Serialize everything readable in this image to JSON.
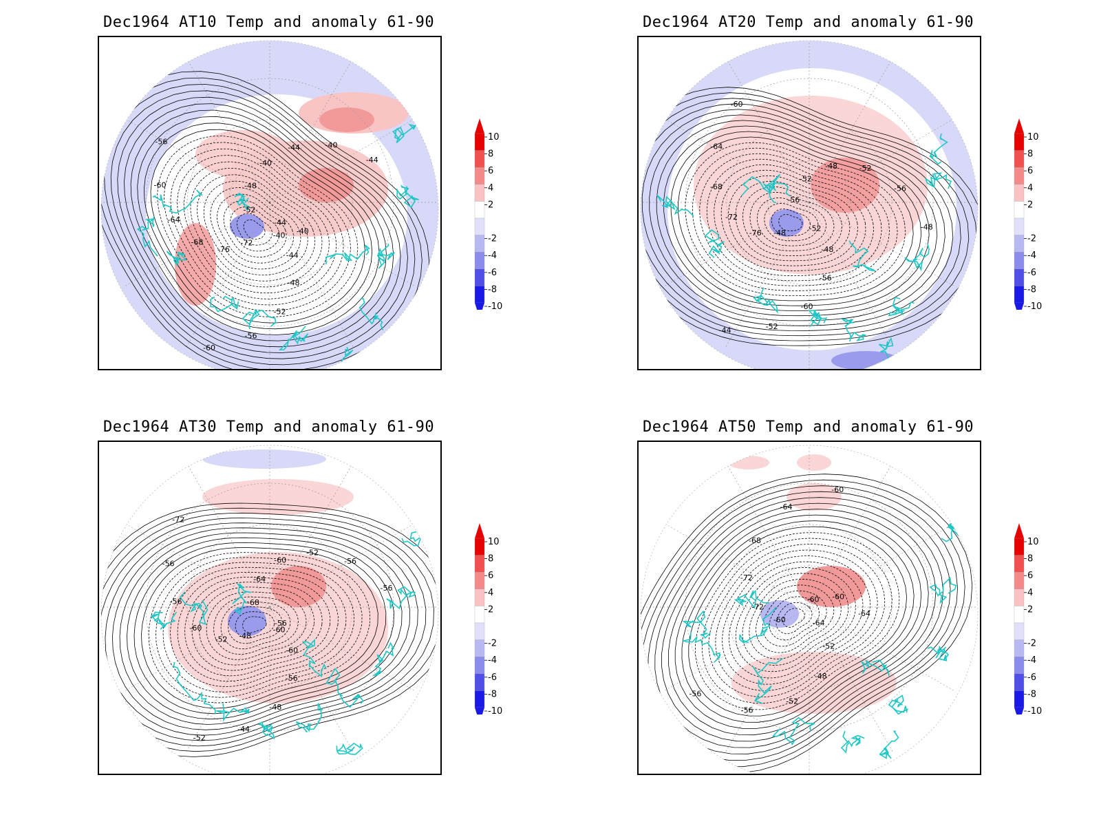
{
  "panels": [
    {
      "title": "Dec1964 AT10 Temp and anomaly 61-90",
      "contour_labels": [
        "-40",
        "-44",
        "-48",
        "-52",
        "-56",
        "-60",
        "-72",
        "-76",
        "-68",
        "-64",
        "-60",
        "-56",
        "-52",
        "-48",
        "-40",
        "-44",
        "-40",
        "-44",
        "-44",
        "-40"
      ]
    },
    {
      "title": "Dec1964 AT20 Temp and anomaly 61-90",
      "contour_labels": [
        "-52",
        "-48",
        "-56",
        "-60",
        "-52",
        "-44",
        "-48",
        "-76",
        "-72",
        "-68",
        "-64",
        "-60",
        "-56",
        "-52",
        "-48",
        "-52",
        "-56",
        "-48"
      ]
    },
    {
      "title": "Dec1964 AT30 Temp and anomaly 61-90",
      "contour_labels": [
        "-60",
        "-60",
        "-56",
        "-48",
        "-44",
        "-52",
        "-48",
        "-52",
        "-60",
        "-56",
        "-56",
        "-72",
        "-68",
        "-64",
        "-60",
        "-52",
        "-56",
        "-56",
        "-56"
      ]
    },
    {
      "title": "Dec1964 AT50 Temp and anomaly 61-90",
      "contour_labels": [
        "-64",
        "-52",
        "-48",
        "-52",
        "-56",
        "-56",
        "-60",
        "-72",
        "-72",
        "-68",
        "-64",
        "-60",
        "-60",
        "-60",
        "-64"
      ]
    }
  ],
  "colorbar": {
    "labels": [
      "10",
      "8",
      "6",
      "4",
      "2",
      "-2",
      "-4",
      "-6",
      "-8",
      "-10"
    ],
    "colors": [
      "#e60000",
      "#f05050",
      "#f58a8a",
      "#fac2c2",
      "#ffffff",
      "#e0e0fb",
      "#b8b8f3",
      "#8c8cec",
      "#5050e8",
      "#1a1ae6"
    ]
  }
}
